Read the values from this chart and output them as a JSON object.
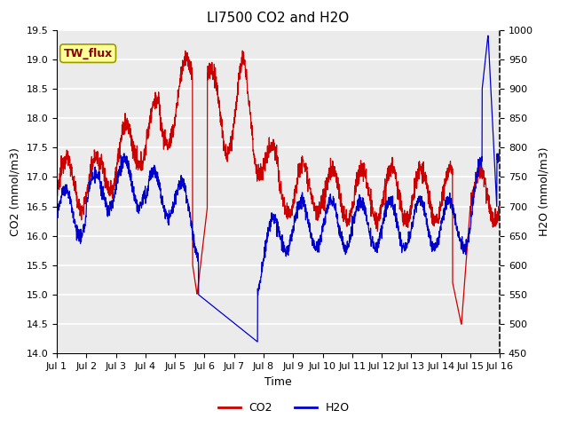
{
  "title": "LI7500 CO2 and H2O",
  "xlabel": "Time",
  "ylabel_left": "CO2 (mmol/m3)",
  "ylabel_right": "H2O (mmol/m3)",
  "ylim_left": [
    14.0,
    19.5
  ],
  "ylim_right": [
    450,
    1000
  ],
  "yticks_left": [
    14.0,
    14.5,
    15.0,
    15.5,
    16.0,
    16.5,
    17.0,
    17.5,
    18.0,
    18.5,
    19.0,
    19.5
  ],
  "yticks_right": [
    450,
    500,
    550,
    600,
    650,
    700,
    750,
    800,
    850,
    900,
    950,
    1000
  ],
  "xtick_labels": [
    "Jul 1",
    "Jul 2",
    "Jul 3",
    "Jul 4",
    "Jul 5",
    "Jul 6",
    "Jul 7",
    "Jul 8",
    "Jul 9",
    "Jul 10",
    "Jul 11",
    "Jul 12",
    "Jul 13",
    "Jul 14",
    "Jul 15",
    "Jul 16"
  ],
  "co2_color": "#cc0000",
  "h2o_color": "#0000cc",
  "background_color": "#ffffff",
  "axes_bg_color": "#ebebeb",
  "grid_color": "#ffffff",
  "annotation_text": "TW_flux",
  "annotation_bg": "#ffff99",
  "annotation_edge": "#999900",
  "legend_co2": "CO2",
  "legend_h2o": "H2O",
  "title_fontsize": 11,
  "label_fontsize": 9,
  "tick_fontsize": 8,
  "legend_fontsize": 9,
  "line_width": 0.9
}
